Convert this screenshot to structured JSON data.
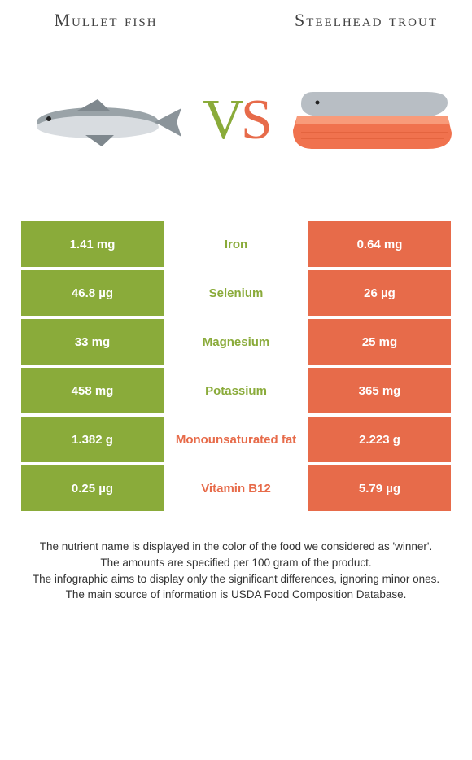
{
  "colors": {
    "left": "#8aab3a",
    "right": "#e76b4a",
    "text_dark": "#424242",
    "white": "#ffffff"
  },
  "left_food": {
    "title": "Mullet fish"
  },
  "right_food": {
    "title": "Steelhead trout"
  },
  "vs": {
    "v": "V",
    "s": "S"
  },
  "rows": [
    {
      "left": "1.41 mg",
      "nutrient": "Iron",
      "right": "0.64 mg",
      "winner": "left"
    },
    {
      "left": "46.8 µg",
      "nutrient": "Selenium",
      "right": "26 µg",
      "winner": "left"
    },
    {
      "left": "33 mg",
      "nutrient": "Magnesium",
      "right": "25 mg",
      "winner": "left"
    },
    {
      "left": "458 mg",
      "nutrient": "Potassium",
      "right": "365 mg",
      "winner": "left"
    },
    {
      "left": "1.382 g",
      "nutrient": "Monounsaturated fat",
      "right": "2.223 g",
      "winner": "right"
    },
    {
      "left": "0.25 µg",
      "nutrient": "Vitamin B12",
      "right": "5.79 µg",
      "winner": "right"
    }
  ],
  "footer": {
    "line1": "The nutrient name is displayed in the color of the food we considered as 'winner'.",
    "line2": "The amounts are specified per 100 gram of the product.",
    "line3": "The infographic aims to display only the significant differences, ignoring minor ones.",
    "line4": "The main source of information is USDA Food Composition Database."
  }
}
